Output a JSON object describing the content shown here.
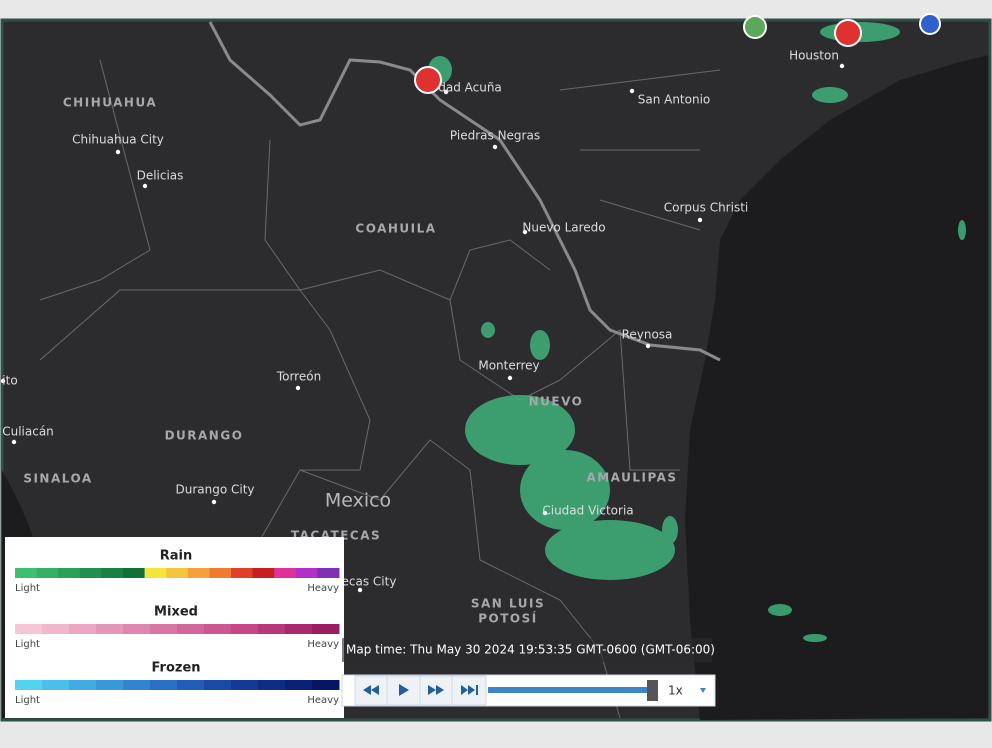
{
  "map": {
    "regions": [
      "CHIHUAHUA",
      "COAHUILA",
      "DURANGO",
      "SINALOA",
      "NUEVO",
      "AMAULIPAS",
      "TACATECAS",
      "SAN LUIS",
      "POTOSÍ"
    ],
    "cities": [
      "Chihuahua City",
      "Delicias",
      "dad Acuña",
      "Piedras Negras",
      "San Antonio",
      "Houston",
      "Corpus Christi",
      "Nuevo Laredo",
      "Reynosa",
      "Monterrey",
      "Torreón",
      "Durango City",
      "Culiacán",
      "ito",
      "Ciudad Victoria",
      "ecas City"
    ],
    "country": "Mexico"
  },
  "legend": [
    {
      "title": "Rain",
      "low": "Light",
      "high": "Heavy",
      "colors": [
        "#3dbf72",
        "#34b066",
        "#2aa05a",
        "#21904e",
        "#198044",
        "#11703a",
        "#f5e53b",
        "#f5c53b",
        "#f5a03b",
        "#f07a2e",
        "#e0402a",
        "#c81e1e",
        "#e0309a",
        "#b030c8",
        "#8030b0"
      ]
    },
    {
      "title": "Mixed",
      "low": "Light",
      "high": "Heavy",
      "colors": [
        "#f6c6d6",
        "#f0b6cc",
        "#eaa6c2",
        "#e496b8",
        "#de86ae",
        "#d876a4",
        "#d2669a",
        "#cc5690",
        "#c64686",
        "#b8367a",
        "#aa286e",
        "#9c1c62"
      ]
    },
    {
      "title": "Frozen",
      "low": "Light",
      "high": "Heavy",
      "colors": [
        "#50d4f0",
        "#48c0ea",
        "#40ace2",
        "#3898da",
        "#3084d0",
        "#2870c6",
        "#205cb8",
        "#1a4aa8",
        "#143a98",
        "#0e2c86",
        "#0a2074",
        "#061662"
      ]
    }
  ],
  "timeline": {
    "map_time": "Map time: Thu May 30 2024 19:53:35 GMT-0600 (GMT-06:00)",
    "speed": "1x"
  }
}
